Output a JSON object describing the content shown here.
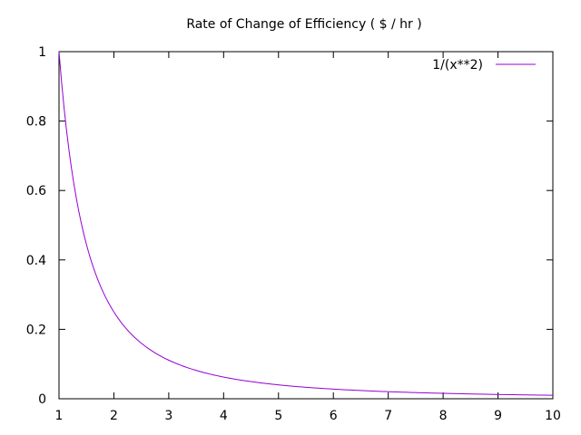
{
  "chart_data": {
    "type": "line",
    "title": "Rate of Change of Efficiency ( $ / hr )",
    "xlabel": "",
    "ylabel": "",
    "xlim": [
      1,
      10
    ],
    "ylim": [
      0,
      1
    ],
    "x_ticks": [
      "1",
      "2",
      "3",
      "4",
      "5",
      "6",
      "7",
      "8",
      "9",
      "10"
    ],
    "y_ticks": [
      "0",
      "0.2",
      "0.4",
      "0.6",
      "0.8",
      "1"
    ],
    "grid": false,
    "legend_position": "top-right",
    "series": [
      {
        "name": "1/(x**2)",
        "color": "#9400d3",
        "x": [
          1,
          1.25,
          1.5,
          1.75,
          2,
          2.5,
          3,
          3.5,
          4,
          5,
          6,
          7,
          8,
          9,
          10
        ],
        "y": [
          1,
          0.64,
          0.444,
          0.327,
          0.25,
          0.16,
          0.111,
          0.082,
          0.0625,
          0.04,
          0.028,
          0.02,
          0.016,
          0.012,
          0.01
        ]
      }
    ]
  }
}
